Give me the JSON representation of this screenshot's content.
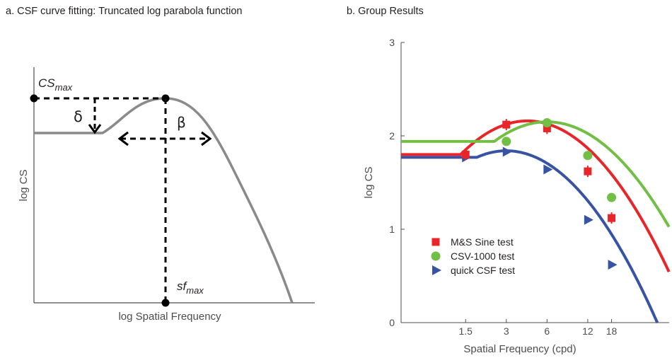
{
  "panel_a": {
    "title": "a.   CSF curve fitting: Truncated log parabola function",
    "xlabel": "log Spatial Frequency",
    "ylabel": "log CS",
    "cs_max_base": "CS",
    "cs_max_sub": "max",
    "sf_max_base": "sf",
    "sf_max_sub": "max",
    "delta": "δ",
    "beta": "β"
  },
  "panel_b": {
    "title": "b.   Group Results",
    "xlabel": "Spatial Frequency (cpd)",
    "ylabel": "log CS",
    "xticks": [
      "1.5",
      "3",
      "6",
      "12",
      "18"
    ],
    "yticks": [
      "0",
      "1",
      "2",
      "3"
    ]
  },
  "chart_data": [
    {
      "type": "line",
      "title": "CSF curve fitting: Truncated log parabola function",
      "xlabel": "log Spatial Frequency",
      "ylabel": "log CS",
      "annotations": [
        "CSmax",
        "sfmax",
        "δ",
        "β"
      ],
      "grid": false
    },
    {
      "type": "scatter",
      "title": "Group Results",
      "xlabel": "Spatial Frequency (cpd)",
      "ylabel": "log CS",
      "xscale": "log",
      "xticks": [
        1.5,
        3,
        6,
        12,
        18
      ],
      "ylim": [
        0,
        3
      ],
      "grid": false,
      "legend_position": "lower-left",
      "series": [
        {
          "name": "M&S Sine test",
          "marker": "square",
          "color": "#e8262a",
          "x": [
            1.5,
            3,
            6,
            12,
            18
          ],
          "y": [
            1.8,
            2.12,
            2.08,
            1.62,
            1.12
          ],
          "curve": {
            "peak_gain": 2.16,
            "peak_freq": 4.3,
            "bandwidth_oct": 3.0,
            "truncation": 1.8
          }
        },
        {
          "name": "CSV-1000 test",
          "marker": "circle",
          "color": "#71bf45",
          "x": [
            3,
            6,
            12,
            18
          ],
          "y": [
            1.94,
            2.14,
            1.79,
            1.34
          ],
          "curve": {
            "peak_gain": 2.15,
            "peak_freq": 6.0,
            "bandwidth_oct": 3.1,
            "truncation": 1.94
          }
        },
        {
          "name": "quick CSF test",
          "marker": "triangle-right",
          "color": "#3953a4",
          "x": [
            1.5,
            3,
            6,
            12,
            18
          ],
          "y": [
            1.77,
            1.83,
            1.64,
            1.1,
            0.62
          ],
          "curve": {
            "peak_gain": 1.84,
            "peak_freq": 3.0,
            "bandwidth_oct": 3.0,
            "truncation": 1.77
          }
        }
      ]
    }
  ]
}
